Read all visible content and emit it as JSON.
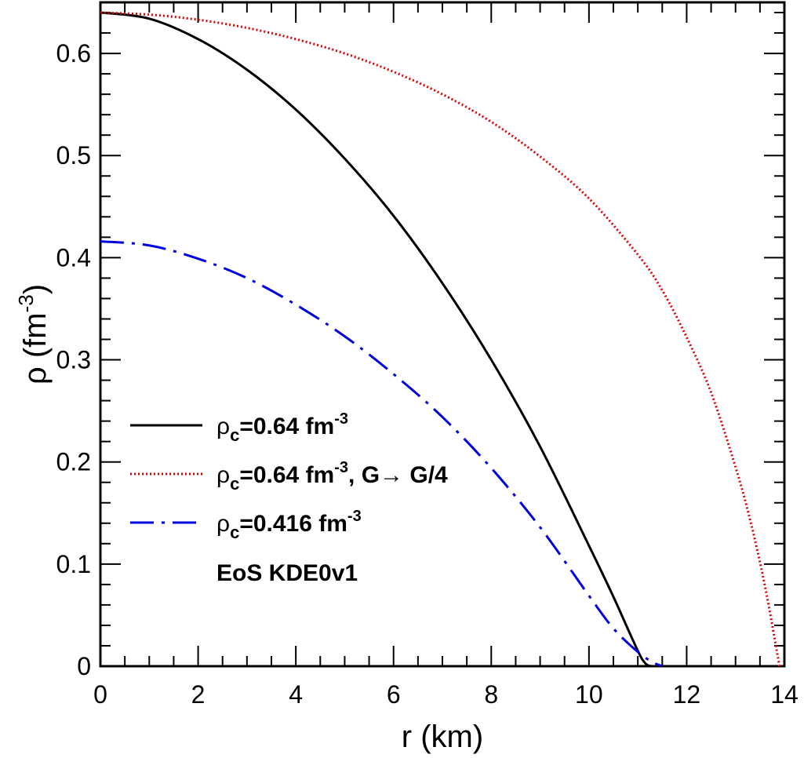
{
  "chart_data": {
    "type": "line",
    "xlabel": "r (km)",
    "ylabel_main": "ρ (fm",
    "ylabel_sup": "-3",
    "ylabel_close": ")",
    "xlim": [
      0,
      14
    ],
    "ylim": [
      0,
      0.65
    ],
    "xticks": [
      0,
      2,
      4,
      6,
      8,
      10,
      12,
      14
    ],
    "xtick_labels": [
      "0",
      "2",
      "4",
      "6",
      "8",
      "10",
      "12",
      "14"
    ],
    "yticks": [
      0,
      0.1,
      0.2,
      0.3,
      0.4,
      0.5,
      0.6
    ],
    "ytick_labels": [
      "0",
      "0.1",
      "0.2",
      "0.3",
      "0.4",
      "0.5",
      "0.6"
    ],
    "grid": false,
    "legend_position": "center-left",
    "legend": [
      {
        "prefix": "ρ",
        "sub": "c",
        "main": "=0.64 fm",
        "sup": "-3",
        "tail": ""
      },
      {
        "prefix": "ρ",
        "sub": "c",
        "main": "=0.64 fm",
        "sup": "-3",
        "tail": ", G→ G/4"
      },
      {
        "prefix": "ρ",
        "sub": "c",
        "main": "=0.416 fm",
        "sup": "-3",
        "tail": ""
      }
    ],
    "annotation": "EoS KDE0v1",
    "series": [
      {
        "color": "#000000",
        "style": "solid",
        "x": [
          0,
          1,
          2,
          3,
          4,
          5,
          6,
          7,
          8,
          9,
          10,
          10.5,
          10.8,
          11.0,
          11.1,
          11.2,
          11.3
        ],
        "y": [
          0.64,
          0.634,
          0.614,
          0.584,
          0.545,
          0.497,
          0.441,
          0.375,
          0.3,
          0.215,
          0.118,
          0.068,
          0.036,
          0.015,
          0.006,
          0.001,
          0
        ]
      },
      {
        "color": "#dd0000",
        "style": "dotted",
        "x": [
          0,
          1,
          2,
          3,
          4,
          5,
          6,
          7,
          8,
          9,
          10,
          11,
          11.5,
          12,
          12.5,
          13,
          13.3,
          13.6,
          13.9
        ],
        "y": [
          0.64,
          0.638,
          0.633,
          0.625,
          0.614,
          0.6,
          0.582,
          0.56,
          0.533,
          0.499,
          0.458,
          0.403,
          0.368,
          0.322,
          0.268,
          0.195,
          0.143,
          0.079,
          0
        ]
      },
      {
        "color": "#0000dd",
        "style": "dashdot",
        "x": [
          0,
          1,
          2,
          3,
          4,
          5,
          6,
          7,
          8,
          9,
          10,
          10.5,
          11.0,
          11.3,
          11.5
        ],
        "y": [
          0.416,
          0.412,
          0.399,
          0.38,
          0.354,
          0.323,
          0.286,
          0.244,
          0.194,
          0.136,
          0.069,
          0.037,
          0.014,
          0.004,
          0
        ]
      }
    ]
  }
}
